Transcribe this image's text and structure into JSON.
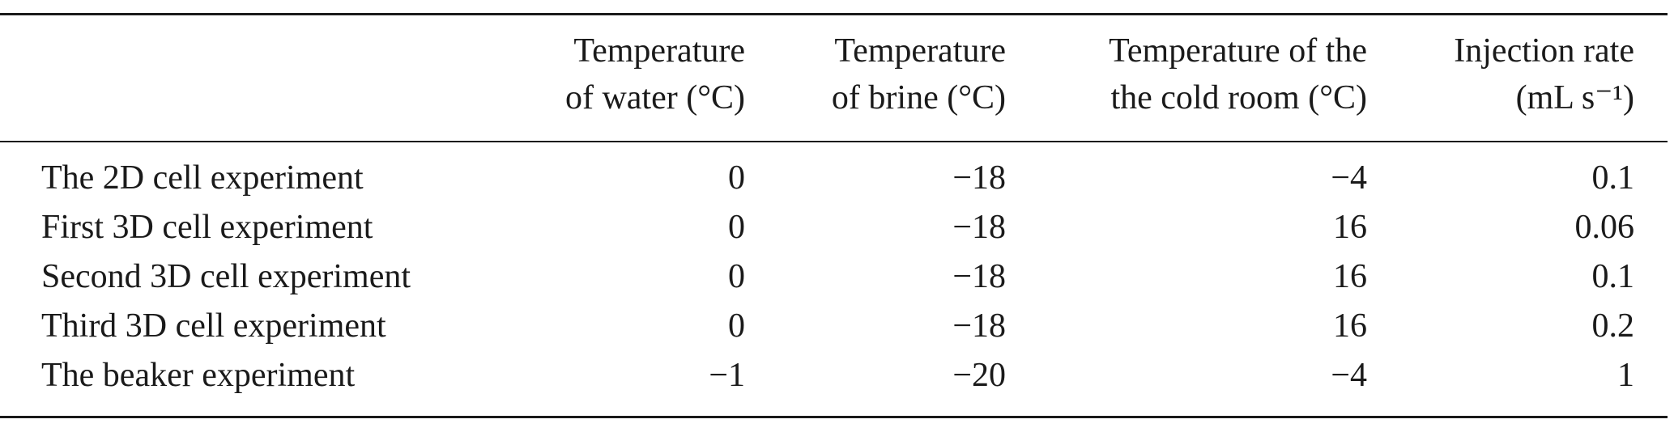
{
  "table": {
    "headers": [
      {
        "line1": "Temperature",
        "line2": "of water (°C)"
      },
      {
        "line1": "Temperature",
        "line2": "of brine (°C)"
      },
      {
        "line1": "Temperature of the",
        "line2": "the cold room (°C)"
      },
      {
        "line1": "Injection rate",
        "line2": "(mL s⁻¹)"
      }
    ],
    "rows": [
      {
        "label": "The 2D cell experiment",
        "cells": [
          "0",
          "−18",
          "−4",
          "0.1"
        ]
      },
      {
        "label": "First 3D cell experiment",
        "cells": [
          "0",
          "−18",
          "16",
          "0.06"
        ]
      },
      {
        "label": "Second 3D cell experiment",
        "cells": [
          "0",
          "−18",
          "16",
          "0.1"
        ]
      },
      {
        "label": "Third 3D cell experiment",
        "cells": [
          "0",
          "−18",
          "16",
          "0.2"
        ]
      },
      {
        "label": "The beaker experiment",
        "cells": [
          "−1",
          "−20",
          "−4",
          "1"
        ]
      }
    ]
  }
}
